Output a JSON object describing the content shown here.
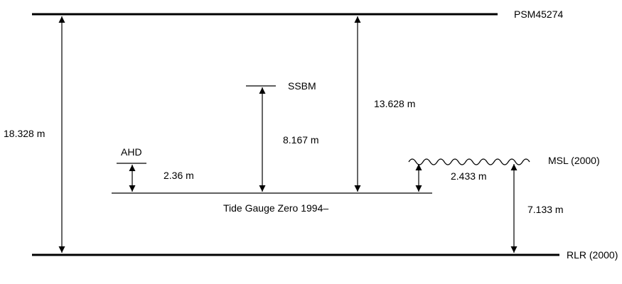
{
  "levels": {
    "psm": "PSM45274",
    "ssbm": "SSBM",
    "ahd": "AHD",
    "msl": "MSL (2000)",
    "tide_gauge_zero": "Tide Gauge Zero 1994–",
    "rlr": "RLR (2000)"
  },
  "measurements": {
    "psm_to_rlr": "18.328 m",
    "psm_to_tgz": "13.628 m",
    "ssbm_to_tgz": "8.167 m",
    "ahd_to_tgz": "2.36 m",
    "msl_to_tgz": "2.433 m",
    "msl_to_rlr": "7.133 m"
  }
}
